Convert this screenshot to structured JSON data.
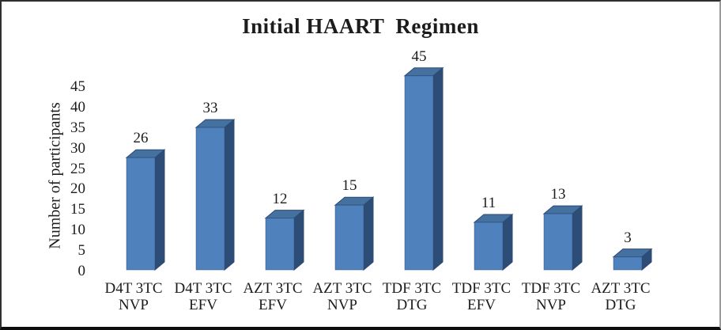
{
  "chart_data": {
    "type": "bar",
    "style": "3d-column",
    "title": "Initial HAART  Regimen",
    "xlabel": "",
    "ylabel": "Number of participants",
    "categories": [
      "D4T 3TC NVP",
      "D4T 3TC EFV",
      "AZT 3TC EFV",
      "AZT 3TC NVP",
      "TDF 3TC DTG",
      "TDF 3TC EFV",
      "TDF 3TC NVP",
      "AZT 3TC DTG"
    ],
    "values": [
      26,
      33,
      12,
      15,
      45,
      11,
      13,
      3
    ],
    "yticks": [
      0,
      5,
      10,
      15,
      20,
      25,
      30,
      35,
      40,
      45
    ],
    "ylim": [
      0,
      45
    ],
    "grid": false,
    "legend": "none",
    "colors": {
      "bar_front": "#4f81bd",
      "bar_top": "#44719f",
      "bar_side": "#2d4d77",
      "bar_outline": "#2a4a73",
      "text": "#1c1c1c",
      "background": "#ffffff"
    }
  }
}
